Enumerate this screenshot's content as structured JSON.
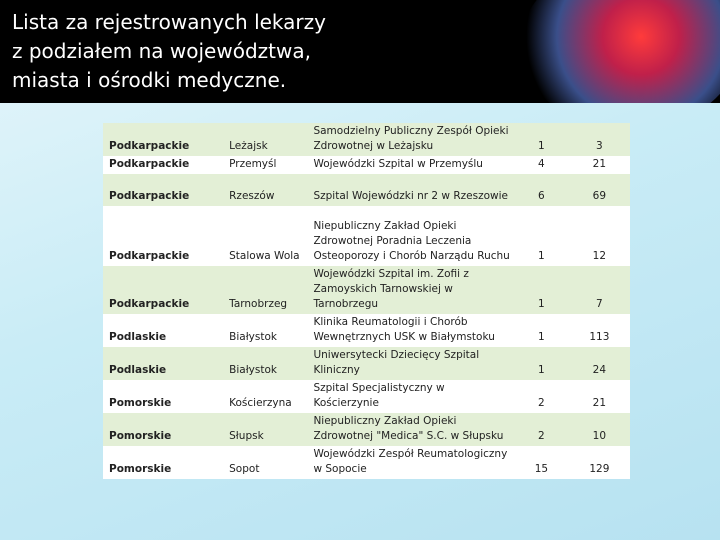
{
  "header": {
    "title_lines": [
      "Lista za rejestrowanych lekarzy",
      "z podziałem na województwa,",
      "miasta i ośrodki medyczne."
    ]
  },
  "table": {
    "rows": [
      [
        "Podkarpackie",
        "Leżajsk",
        "Samodzielny Publiczny Zespół Opieki Zdrowotnej w Leżajsku",
        1,
        3
      ],
      [
        "Podkarpackie",
        "Przemyśl",
        "Wojewódzki Szpital w Przemyślu",
        4,
        21
      ],
      [
        "Podkarpackie",
        "Rzeszów",
        "Szpital Wojewódzki nr 2 w Rzeszowie",
        6,
        69
      ],
      [
        "Podkarpackie",
        "Stalowa Wola",
        "Niepubliczny Zakład Opieki Zdrowotnej Poradnia Leczenia Osteoporozy i Chorób Narządu Ruchu",
        1,
        12
      ],
      [
        "Podkarpackie",
        "Tarnobrzeg",
        "Wojewódzki Szpital im. Zofii z Zamoyskich Tarnowskiej w Tarnobrzegu",
        1,
        7
      ],
      [
        "Podlaskie",
        "Białystok",
        "Klinika Reumatologii i Chorób Wewnętrznych USK w Białymstoku",
        1,
        113
      ],
      [
        "Podlaskie",
        "Białystok",
        "Uniwersytecki Dziecięcy Szpital Kliniczny",
        1,
        24
      ],
      [
        "Pomorskie",
        "Kościerzyna",
        "Szpital Specjalistyczny w Kościerzynie",
        2,
        21
      ],
      [
        "Pomorskie",
        "Słupsk",
        "Niepubliczny Zakład Opieki Zdrowotnej \"Medica\" S.C. w Słupsku",
        2,
        10
      ],
      [
        "Pomorskie",
        "Sopot",
        "Wojewódzki Zespół Reumatologiczny w Sopocie",
        15,
        129
      ]
    ]
  }
}
